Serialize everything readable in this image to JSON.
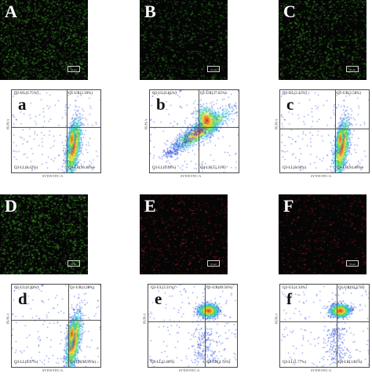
{
  "micrographs": [
    {
      "letter": "A",
      "dot_color": "#3fae2a",
      "density": 0.95,
      "scale_label": "50 μm"
    },
    {
      "letter": "B",
      "dot_color": "#3aa52a",
      "density": 0.55,
      "scale_label": "50 μm"
    },
    {
      "letter": "C",
      "dot_color": "#3fae2a",
      "density": 0.7,
      "scale_label": "50 μm"
    },
    {
      "letter": "D",
      "dot_color": "#46b830",
      "density": 1.0,
      "scale_label": "50 μm"
    },
    {
      "letter": "E",
      "dot_color": "#b5262a",
      "density": 0.35,
      "scale_label": "50 μm"
    },
    {
      "letter": "F",
      "dot_color": "#b5262a",
      "density": 0.3,
      "scale_label": "50 μm"
    }
  ],
  "flow_plots": [
    {
      "letter": "a",
      "q2": "Q2-UL(0.75%)",
      "q1": "Q1-UR(2.39%)",
      "q3": "Q3-LL(0.42%)",
      "q4": "Q4-LR(96.44%)",
      "ylabel": "PE/PI-A",
      "xlabel": "SYTO9 FITC-A",
      "cluster": "lr"
    },
    {
      "letter": "b",
      "q2": "Q2-UL(6.81%)",
      "q1": "Q1-UR(37.62%)",
      "q3": "Q3-LL(0.46%)",
      "q4": "Q4-LR(55.11%)",
      "ylabel": "PE/PI-A",
      "xlabel": "SYTO9 FITC-A",
      "cluster": "diag"
    },
    {
      "letter": "c",
      "q2": "Q2-UL(2.42%)",
      "q1": "Q1-UR(2.58%)",
      "q3": "Q3-LL(0.60%)",
      "q4": "Q4-LR(94.40%)",
      "ylabel": "PE/PI-A",
      "xlabel": "SYTO9 FITC-A",
      "cluster": "lr"
    },
    {
      "letter": "d",
      "q2": "Q2-UL(0.30%)",
      "q1": "Q1-UR(4.28%)",
      "q3": "Q3-LL(0.47%)",
      "q4": "Q4-LR(94.95%)",
      "ylabel": "PE/PI-A",
      "xlabel": "SYTO9 FITC-A",
      "cluster": "lr"
    },
    {
      "letter": "e",
      "q2": "Q2-UL(3.31%)",
      "q1": "Q1-UR(89.56%)",
      "q3": "Q3-LL(2.40%)",
      "q4": "Q4-LR(4.73%)",
      "ylabel": "PE/PI-A",
      "xlabel": "SYTO9 FITC-A",
      "cluster": "ur"
    },
    {
      "letter": "f",
      "q2": "Q2-UL(4.34%)",
      "q1": "Q1-UR(92.57%)",
      "q3": "Q3-LL(1.77%)",
      "q4": "Q4-LR(1.32%)",
      "ylabel": "PE/PI-A",
      "xlabel": "SYTO9 FITC-A",
      "cluster": "ur"
    }
  ],
  "axis_ticks": {
    "y": [
      "10⁵",
      "10⁴",
      "10³",
      "10²",
      "10¹"
    ],
    "x": [
      "10¹",
      "10²",
      "10³",
      "10⁴",
      "10⁵"
    ]
  }
}
